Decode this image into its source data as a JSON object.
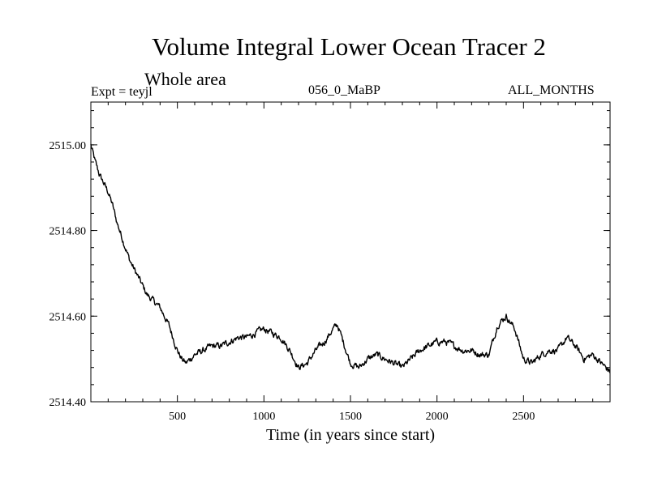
{
  "title": "Volume Integral Lower Ocean Tracer 2",
  "subtitle": "Whole area",
  "expt_label": "Expt = teyjl",
  "center_label": "056_0_MaBP",
  "right_label": "ALL_MONTHS",
  "chart_data": {
    "type": "line",
    "title": "Volume Integral Lower Ocean Tracer 2",
    "subtitle": "Whole area",
    "xlabel": "Time (in years since start)",
    "ylabel": "",
    "xlim": [
      0,
      3000
    ],
    "ylim": [
      2514.4,
      2515.1
    ],
    "xticks": [
      500,
      1000,
      1500,
      2000,
      2500
    ],
    "xtick_labels": [
      "500",
      "1000",
      "1500",
      "2000",
      "2500"
    ],
    "yticks": [
      2514.4,
      2514.6,
      2514.8,
      2515.0
    ],
    "ytick_labels": [
      "2514.40",
      "2514.60",
      "2514.80",
      "2515.00"
    ],
    "grid": false,
    "series": [
      {
        "name": "Lower Ocean Tracer 2",
        "color": "#000000",
        "x": [
          0,
          25,
          50,
          75,
          100,
          125,
          150,
          175,
          200,
          225,
          250,
          275,
          300,
          325,
          350,
          375,
          400,
          425,
          450,
          475,
          500,
          525,
          550,
          575,
          600,
          650,
          700,
          750,
          800,
          850,
          900,
          950,
          1000,
          1050,
          1100,
          1150,
          1200,
          1250,
          1300,
          1350,
          1400,
          1425,
          1450,
          1500,
          1550,
          1600,
          1650,
          1700,
          1750,
          1800,
          1850,
          1900,
          1950,
          2000,
          2050,
          2100,
          2150,
          2200,
          2250,
          2300,
          2350,
          2400,
          2450,
          2500,
          2550,
          2600,
          2650,
          2700,
          2750,
          2800,
          2850,
          2900,
          2950,
          3000
        ],
        "y": [
          2515.0,
          2514.96,
          2514.93,
          2514.91,
          2514.89,
          2514.86,
          2514.82,
          2514.79,
          2514.76,
          2514.73,
          2514.71,
          2514.69,
          2514.67,
          2514.65,
          2514.64,
          2514.63,
          2514.62,
          2514.6,
          2514.58,
          2514.55,
          2514.52,
          2514.5,
          2514.49,
          2514.5,
          2514.51,
          2514.52,
          2514.53,
          2514.53,
          2514.54,
          2514.55,
          2514.55,
          2514.56,
          2514.57,
          2514.56,
          2514.55,
          2514.52,
          2514.48,
          2514.49,
          2514.52,
          2514.54,
          2514.57,
          2514.58,
          2514.55,
          2514.49,
          2514.48,
          2514.5,
          2514.51,
          2514.5,
          2514.49,
          2514.48,
          2514.5,
          2514.52,
          2514.53,
          2514.54,
          2514.54,
          2514.53,
          2514.52,
          2514.52,
          2514.51,
          2514.51,
          2514.58,
          2514.6,
          2514.57,
          2514.5,
          2514.49,
          2514.51,
          2514.52,
          2514.52,
          2514.55,
          2514.53,
          2514.5,
          2514.51,
          2514.49,
          2514.47
        ]
      }
    ]
  }
}
